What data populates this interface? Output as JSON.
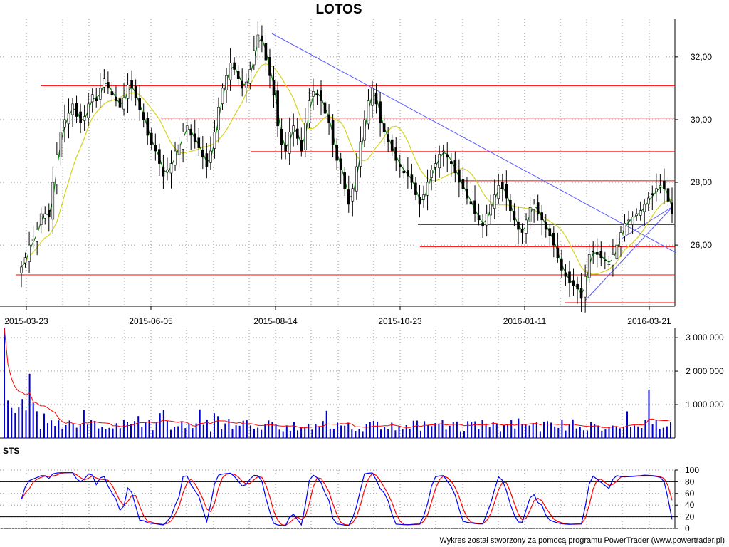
{
  "title": "LOTOS",
  "footer": "Wykres został stworzony za pomocą programu PowerTrader (www.powertrader.pl)",
  "colors": {
    "candle_up": "#ffffff",
    "candle_down": "#000000",
    "candle_wick": "#000000",
    "ma_short": "#008000",
    "ma_long": "#d4d41e",
    "support_resistance": "#ff0000",
    "trendline": "#5a5aff",
    "volume_bar": "#0000cc",
    "volume_ma": "#ff0000",
    "sts_k": "#0000ff",
    "sts_d": "#ff0000"
  },
  "chart_data": [
    {
      "panel": "price",
      "type": "candlestick",
      "title": "LOTOS",
      "x_labels": [
        "2015-03-23",
        "2015-06-05",
        "2015-08-14",
        "2015-10-23",
        "2016-01-11",
        "2016-03-21"
      ],
      "y_tick_labels": [
        "26,00",
        "28,00",
        "30,00",
        "32,00"
      ],
      "ylim": [
        24.05,
        33.2
      ],
      "grid": true,
      "closes": [
        25.3,
        25.6,
        26.0,
        26.2,
        26.5,
        27.0,
        27.0,
        26.9,
        28.0,
        28.9,
        29.6,
        30.0,
        30.2,
        30.5,
        30.1,
        29.9,
        30.1,
        30.5,
        30.8,
        30.6,
        31.0,
        31.3,
        31.0,
        30.8,
        30.6,
        30.4,
        30.7,
        31.1,
        31.0,
        30.7,
        30.3,
        30.0,
        29.5,
        29.2,
        29.0,
        28.6,
        28.2,
        28.4,
        28.6,
        29.0,
        29.2,
        29.6,
        29.8,
        29.5,
        29.3,
        29.1,
        28.8,
        28.5,
        29.0,
        29.6,
        30.4,
        31.0,
        31.4,
        31.8,
        31.6,
        31.3,
        31.0,
        31.2,
        31.6,
        32.2,
        32.7,
        32.5,
        31.9,
        31.4,
        30.8,
        29.8,
        29.2,
        29.0,
        29.6,
        29.8,
        29.4,
        29.0,
        29.9,
        30.6,
        30.9,
        30.8,
        30.6,
        30.2,
        29.9,
        29.2,
        28.7,
        28.4,
        27.8,
        27.3,
        27.8,
        28.5,
        29.3,
        30.0,
        30.6,
        31.0,
        30.5,
        29.9,
        29.6,
        29.3,
        29.0,
        28.7,
        28.5,
        28.3,
        28.2,
        28.0,
        27.6,
        27.3,
        27.6,
        28.0,
        28.4,
        28.6,
        28.9,
        29.0,
        28.8,
        28.6,
        28.3,
        28.0,
        27.8,
        27.5,
        27.3,
        27.0,
        26.8,
        26.6,
        27.0,
        27.3,
        27.6,
        27.9,
        27.8,
        27.5,
        27.1,
        26.8,
        26.5,
        26.4,
        26.8,
        27.2,
        27.3,
        27.0,
        26.8,
        26.5,
        26.3,
        26.0,
        25.6,
        25.2,
        25.0,
        24.8,
        24.7,
        24.6,
        24.3,
        25.0,
        25.7,
        25.8,
        25.7,
        25.6,
        25.5,
        25.4,
        25.7,
        26.0,
        26.4,
        26.7,
        26.8,
        26.9,
        27.0,
        27.1,
        27.3,
        27.5,
        27.6,
        27.8,
        27.9,
        27.8,
        27.4,
        27.0
      ]
    },
    {
      "panel": "volume",
      "type": "bar",
      "y_tick_labels": [
        "1 000 000",
        "2 000 000",
        "3 000 000"
      ],
      "ylim": [
        0,
        3300000
      ],
      "spikes": [
        {
          "x_label": "2015-03-23",
          "value": 3300000
        },
        {
          "x_label": "2016-03-21",
          "value": 1450000
        }
      ],
      "typical_value": 400000
    },
    {
      "panel": "oscillator",
      "type": "line",
      "title": "STS",
      "y_tick_labels": [
        "0",
        "20",
        "40",
        "60",
        "80",
        "100"
      ],
      "ylim": [
        0,
        100
      ],
      "reference_levels": [
        20,
        80
      ]
    }
  ]
}
